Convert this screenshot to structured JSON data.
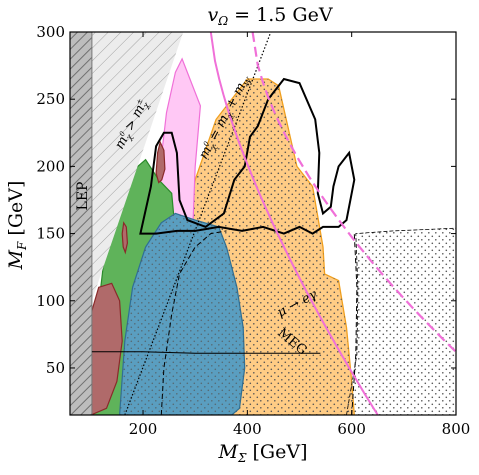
{
  "chart_data": {
    "type": "contour",
    "title": "v_Ω = 1.5 GeV",
    "title_main": "v",
    "title_sub": "Ω",
    "title_rest": " = 1.5 GeV",
    "xlabel_main": "M",
    "xlabel_sub": "Σ",
    "xlabel_rest": " [GeV]",
    "ylabel_main": "M",
    "ylabel_sub": "F",
    "ylabel_rest": " [GeV]",
    "xlim": [
      60,
      800
    ],
    "ylim": [
      15,
      300
    ],
    "grid": false,
    "x_ticks": [
      {
        "v": 200,
        "label": "200"
      },
      {
        "v": 400,
        "label": "400"
      },
      {
        "v": 600,
        "label": "600"
      },
      {
        "v": 800,
        "label": "800"
      }
    ],
    "y_ticks": [
      {
        "v": 50,
        "label": "50"
      },
      {
        "v": 100,
        "label": "100"
      },
      {
        "v": 150,
        "label": "150"
      },
      {
        "v": 200,
        "label": "200"
      },
      {
        "v": 250,
        "label": "250"
      },
      {
        "v": 300,
        "label": "300"
      }
    ],
    "colors": {
      "brown": "#b06a6a",
      "green": "#5fb35a",
      "blue": "#5a9ec0",
      "orange": "#ffcc85",
      "pink": "#ffc8f5",
      "magenta": "#f070d8",
      "lep": "#bbbbbb"
    },
    "annotations": {
      "lep": "LEP",
      "chi_main": "m",
      "chi_sub": "χ",
      "chi_sup": "0",
      "chi_gt": " > m",
      "chi_pm_sub": "χ",
      "chi_pm_sup": "±",
      "chi_eq": " = m",
      "chi_plus": " + m",
      "chi_w_sub": "W",
      "decay": "μ → eγ",
      "meg": "MEG"
    }
  }
}
